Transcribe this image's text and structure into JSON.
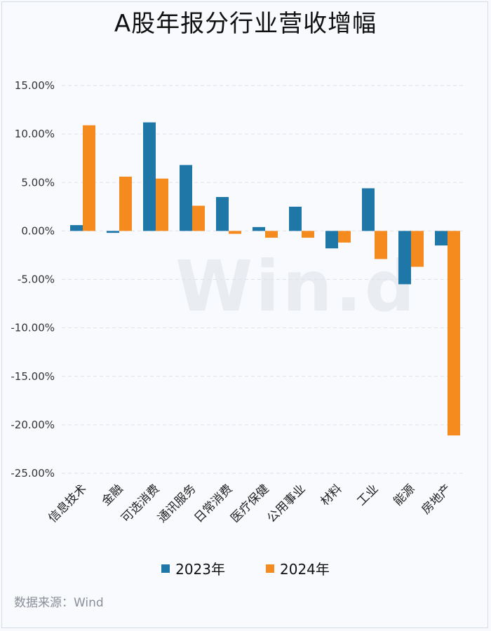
{
  "chart_data": {
    "type": "bar",
    "title": "A股年报分行业营收增幅",
    "categories": [
      "信息技术",
      "金融",
      "可选消费",
      "通讯服务",
      "日常消费",
      "医疗保健",
      "公用事业",
      "材料",
      "工业",
      "能源",
      "房地产"
    ],
    "series": [
      {
        "name": "2023年",
        "color": "#1f77a8",
        "values": [
          0.6,
          -0.2,
          11.2,
          6.8,
          3.5,
          0.4,
          2.5,
          -1.8,
          4.4,
          -5.5,
          -1.5
        ]
      },
      {
        "name": "2024年",
        "color": "#f58a1f",
        "values": [
          10.9,
          5.6,
          5.4,
          2.6,
          -0.3,
          -0.7,
          -0.7,
          -1.2,
          -2.9,
          -3.7,
          -21.1
        ]
      }
    ],
    "yticks": [
      "15.00%",
      "10.00%",
      "5.00%",
      "0.00%",
      "-5.00%",
      "-10.00%",
      "-15.00%",
      "-20.00%",
      "-25.00%"
    ],
    "ytick_values": [
      15,
      10,
      5,
      0,
      -5,
      -10,
      -15,
      -20,
      -25
    ],
    "ylim": [
      -25,
      15
    ],
    "xlabel": "",
    "ylabel": "",
    "legend": "bottom-center"
  },
  "watermark": "Win.d",
  "source": "数据来源：Wind"
}
